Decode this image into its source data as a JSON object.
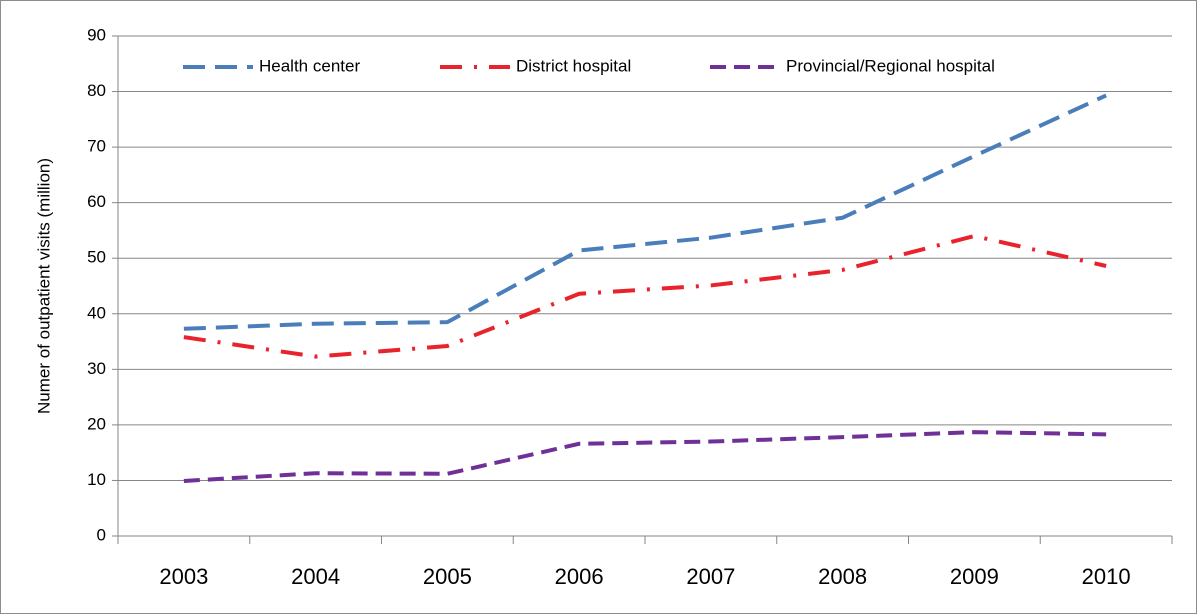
{
  "chart_data": {
    "type": "line",
    "y_label": "Numer of outpatient visits (million)",
    "categories": [
      "2003",
      "2004",
      "2005",
      "2006",
      "2007",
      "2008",
      "2009",
      "2010"
    ],
    "series": [
      {
        "name": "Health center",
        "color": "#4a7ebb",
        "values": [
          37.3,
          38.2,
          38.5,
          51.4,
          53.7,
          57.3,
          68.4,
          79.3
        ]
      },
      {
        "name": "District hospital",
        "color": "#e8232b",
        "values": [
          35.8,
          32.3,
          34.2,
          43.6,
          45.1,
          47.9,
          54.0,
          48.6
        ]
      },
      {
        "name": "Provincial/Regional hospital",
        "color": "#6f3198",
        "values": [
          9.9,
          11.3,
          11.2,
          16.6,
          17.0,
          17.8,
          18.7,
          18.3
        ]
      }
    ],
    "ylim": [
      0,
      90
    ],
    "yticks": [
      0,
      10,
      20,
      30,
      40,
      50,
      60,
      70,
      80,
      90
    ],
    "grid": true,
    "legend": "top"
  }
}
